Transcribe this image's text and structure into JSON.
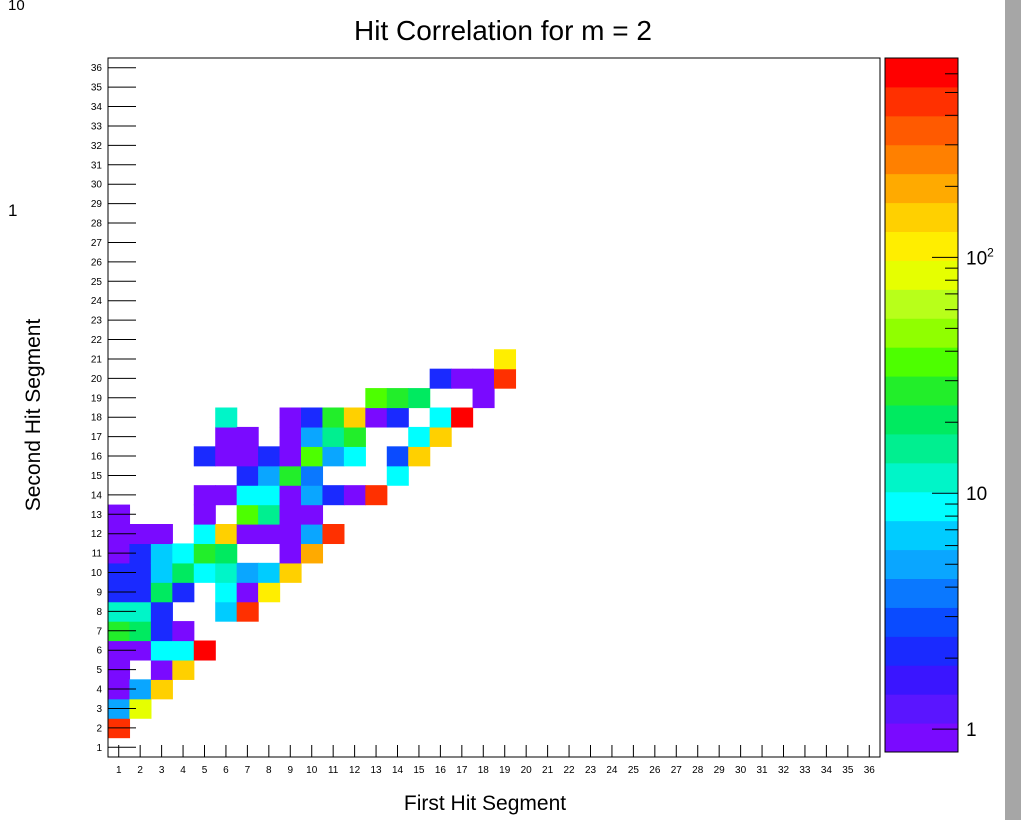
{
  "chart_data": {
    "type": "heatmap",
    "title": "Hit Correlation for m = 2",
    "xlabel": "First Hit Segment",
    "ylabel": "Second Hit Segment",
    "x_range": [
      1,
      36
    ],
    "y_range": [
      1,
      36
    ],
    "z_scale": "log",
    "z_range": [
      0.8,
      700
    ],
    "palette": [
      "#7a0aff",
      "#5a15ff",
      "#3a15ff",
      "#1a2aff",
      "#0a4bff",
      "#0a78ff",
      "#0aa6ff",
      "#00ccff",
      "#00ffff",
      "#00f5c8",
      "#00ef90",
      "#00ea60",
      "#22ee2a",
      "#4dff00",
      "#90ff00",
      "#b8ff1a",
      "#e6ff00",
      "#ffee00",
      "#ffd000",
      "#ffaa00",
      "#ff8000",
      "#ff5a00",
      "#ff3000",
      "#ff0000"
    ],
    "colorbar_ticks": [
      "1",
      "10",
      "10^2"
    ],
    "corner_labels": [
      "10",
      "1"
    ],
    "cells": [
      [
        1,
        2,
        470
      ],
      [
        1,
        3,
        5
      ],
      [
        1,
        4,
        1
      ],
      [
        1,
        5,
        1
      ],
      [
        1,
        6,
        1
      ],
      [
        1,
        7,
        30
      ],
      [
        1,
        8,
        12
      ],
      [
        1,
        9,
        2
      ],
      [
        1,
        10,
        2
      ],
      [
        1,
        11,
        1
      ],
      [
        1,
        12,
        1
      ],
      [
        1,
        13,
        1
      ],
      [
        2,
        3,
        90
      ],
      [
        2,
        4,
        5
      ],
      [
        2,
        6,
        1
      ],
      [
        2,
        7,
        20
      ],
      [
        2,
        8,
        12
      ],
      [
        2,
        9,
        2
      ],
      [
        2,
        10,
        2
      ],
      [
        2,
        11,
        2
      ],
      [
        2,
        12,
        1
      ],
      [
        3,
        4,
        150
      ],
      [
        3,
        5,
        1
      ],
      [
        3,
        6,
        8
      ],
      [
        3,
        7,
        2
      ],
      [
        3,
        8,
        2
      ],
      [
        3,
        9,
        20
      ],
      [
        3,
        10,
        6
      ],
      [
        3,
        11,
        6
      ],
      [
        3,
        12,
        1
      ],
      [
        4,
        5,
        150
      ],
      [
        4,
        6,
        8
      ],
      [
        4,
        7,
        1
      ],
      [
        4,
        9,
        2
      ],
      [
        4,
        10,
        20
      ],
      [
        4,
        11,
        8
      ],
      [
        5,
        6,
        600
      ],
      [
        5,
        10,
        10
      ],
      [
        5,
        11,
        30
      ],
      [
        5,
        12,
        8
      ],
      [
        5,
        13,
        1
      ],
      [
        5,
        14,
        1
      ],
      [
        5,
        16,
        2
      ],
      [
        6,
        8,
        6
      ],
      [
        6,
        9,
        8
      ],
      [
        6,
        10,
        12
      ],
      [
        6,
        11,
        20
      ],
      [
        6,
        12,
        150
      ],
      [
        6,
        14,
        1
      ],
      [
        6,
        16,
        1
      ],
      [
        6,
        17,
        1
      ],
      [
        6,
        18,
        12
      ],
      [
        7,
        8,
        500
      ],
      [
        7,
        9,
        1
      ],
      [
        7,
        10,
        5
      ],
      [
        7,
        12,
        1
      ],
      [
        7,
        13,
        40
      ],
      [
        7,
        14,
        8
      ],
      [
        7,
        15,
        2
      ],
      [
        7,
        16,
        1
      ],
      [
        7,
        17,
        1
      ],
      [
        8,
        9,
        100
      ],
      [
        8,
        10,
        6
      ],
      [
        8,
        12,
        1
      ],
      [
        8,
        13,
        15
      ],
      [
        8,
        14,
        8
      ],
      [
        8,
        15,
        5
      ],
      [
        8,
        16,
        2
      ],
      [
        9,
        10,
        150
      ],
      [
        9,
        11,
        1
      ],
      [
        9,
        12,
        1
      ],
      [
        9,
        13,
        1
      ],
      [
        9,
        14,
        1
      ],
      [
        9,
        15,
        30
      ],
      [
        9,
        16,
        1
      ],
      [
        9,
        17,
        1
      ],
      [
        9,
        18,
        1
      ],
      [
        10,
        11,
        200
      ],
      [
        10,
        12,
        5
      ],
      [
        10,
        13,
        1
      ],
      [
        10,
        14,
        5
      ],
      [
        10,
        15,
        4
      ],
      [
        10,
        16,
        40
      ],
      [
        10,
        17,
        5
      ],
      [
        10,
        18,
        2
      ],
      [
        11,
        12,
        500
      ],
      [
        11,
        14,
        2
      ],
      [
        11,
        16,
        5
      ],
      [
        11,
        17,
        15
      ],
      [
        11,
        18,
        30
      ],
      [
        12,
        14,
        1
      ],
      [
        12,
        16,
        10
      ],
      [
        12,
        17,
        25
      ],
      [
        12,
        18,
        160
      ],
      [
        13,
        14,
        500
      ],
      [
        13,
        18,
        1
      ],
      [
        13,
        19,
        40
      ],
      [
        14,
        15,
        10
      ],
      [
        14,
        16,
        3
      ],
      [
        14,
        18,
        2
      ],
      [
        14,
        19,
        30
      ],
      [
        15,
        16,
        150
      ],
      [
        15,
        17,
        10
      ],
      [
        15,
        19,
        20
      ],
      [
        16,
        17,
        150
      ],
      [
        16,
        18,
        10
      ],
      [
        16,
        20,
        2
      ],
      [
        17,
        18,
        600
      ],
      [
        17,
        20,
        1
      ],
      [
        18,
        19,
        1
      ],
      [
        18,
        20,
        1
      ],
      [
        19,
        20,
        500
      ],
      [
        19,
        21,
        100
      ]
    ]
  }
}
